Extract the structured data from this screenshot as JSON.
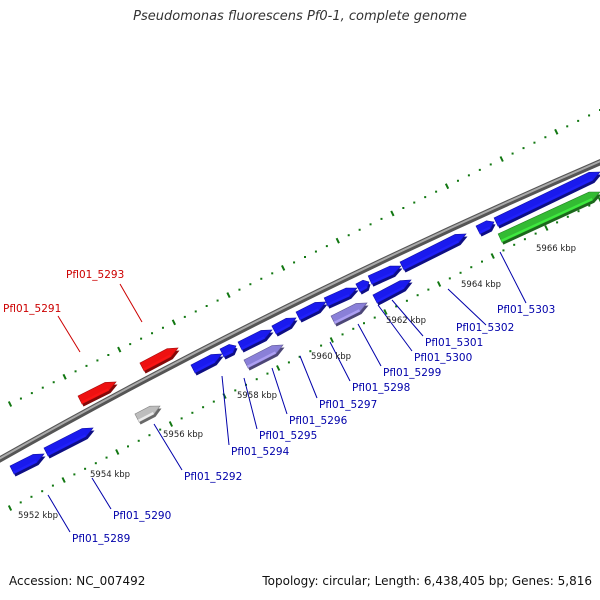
{
  "title": "Pseudomonas fluorescens Pf0-1, complete genome",
  "footer": {
    "accession": "Accession: NC_007492",
    "stats": "Topology: circular; Length: 6,438,405 bp; Genes: 5,816"
  },
  "colors": {
    "forward_gene": "#1a1aee",
    "reverse_gene": "#1a1aee",
    "rna_gene": "#ee1111",
    "pseudo_gene": "#8a80d8",
    "other_gene": "#bdbdbd",
    "highlight_gene": "#33bb33",
    "backbone": "#888888",
    "tick": "#117711",
    "label_blue": "#0000aa",
    "label_red": "#cc0000"
  },
  "ticks": [
    "5952 kbp",
    "5954 kbp",
    "5956 kbp",
    "5958 kbp",
    "5960 kbp",
    "5962 kbp",
    "5964 kbp",
    "5966 kbp"
  ],
  "genes": [
    {
      "label": "Pfl01_5289",
      "type": "forward"
    },
    {
      "label": "Pfl01_5290",
      "type": "forward"
    },
    {
      "label": "Pfl01_5291",
      "type": "rna"
    },
    {
      "label": "Pfl01_5292",
      "type": "other"
    },
    {
      "label": "Pfl01_5293",
      "type": "rna"
    },
    {
      "label": "Pfl01_5294",
      "type": "forward"
    },
    {
      "label": "Pfl01_5295",
      "type": "forward"
    },
    {
      "label": "Pfl01_5296",
      "type": "pseudo"
    },
    {
      "label": "Pfl01_5297",
      "type": "forward"
    },
    {
      "label": "Pfl01_5298",
      "type": "forward"
    },
    {
      "label": "Pfl01_5299",
      "type": "pseudo"
    },
    {
      "label": "Pfl01_5300",
      "type": "forward"
    },
    {
      "label": "Pfl01_5301",
      "type": "forward"
    },
    {
      "label": "Pfl01_5302",
      "type": "forward"
    },
    {
      "label": "Pfl01_5303",
      "type": "forward"
    }
  ]
}
